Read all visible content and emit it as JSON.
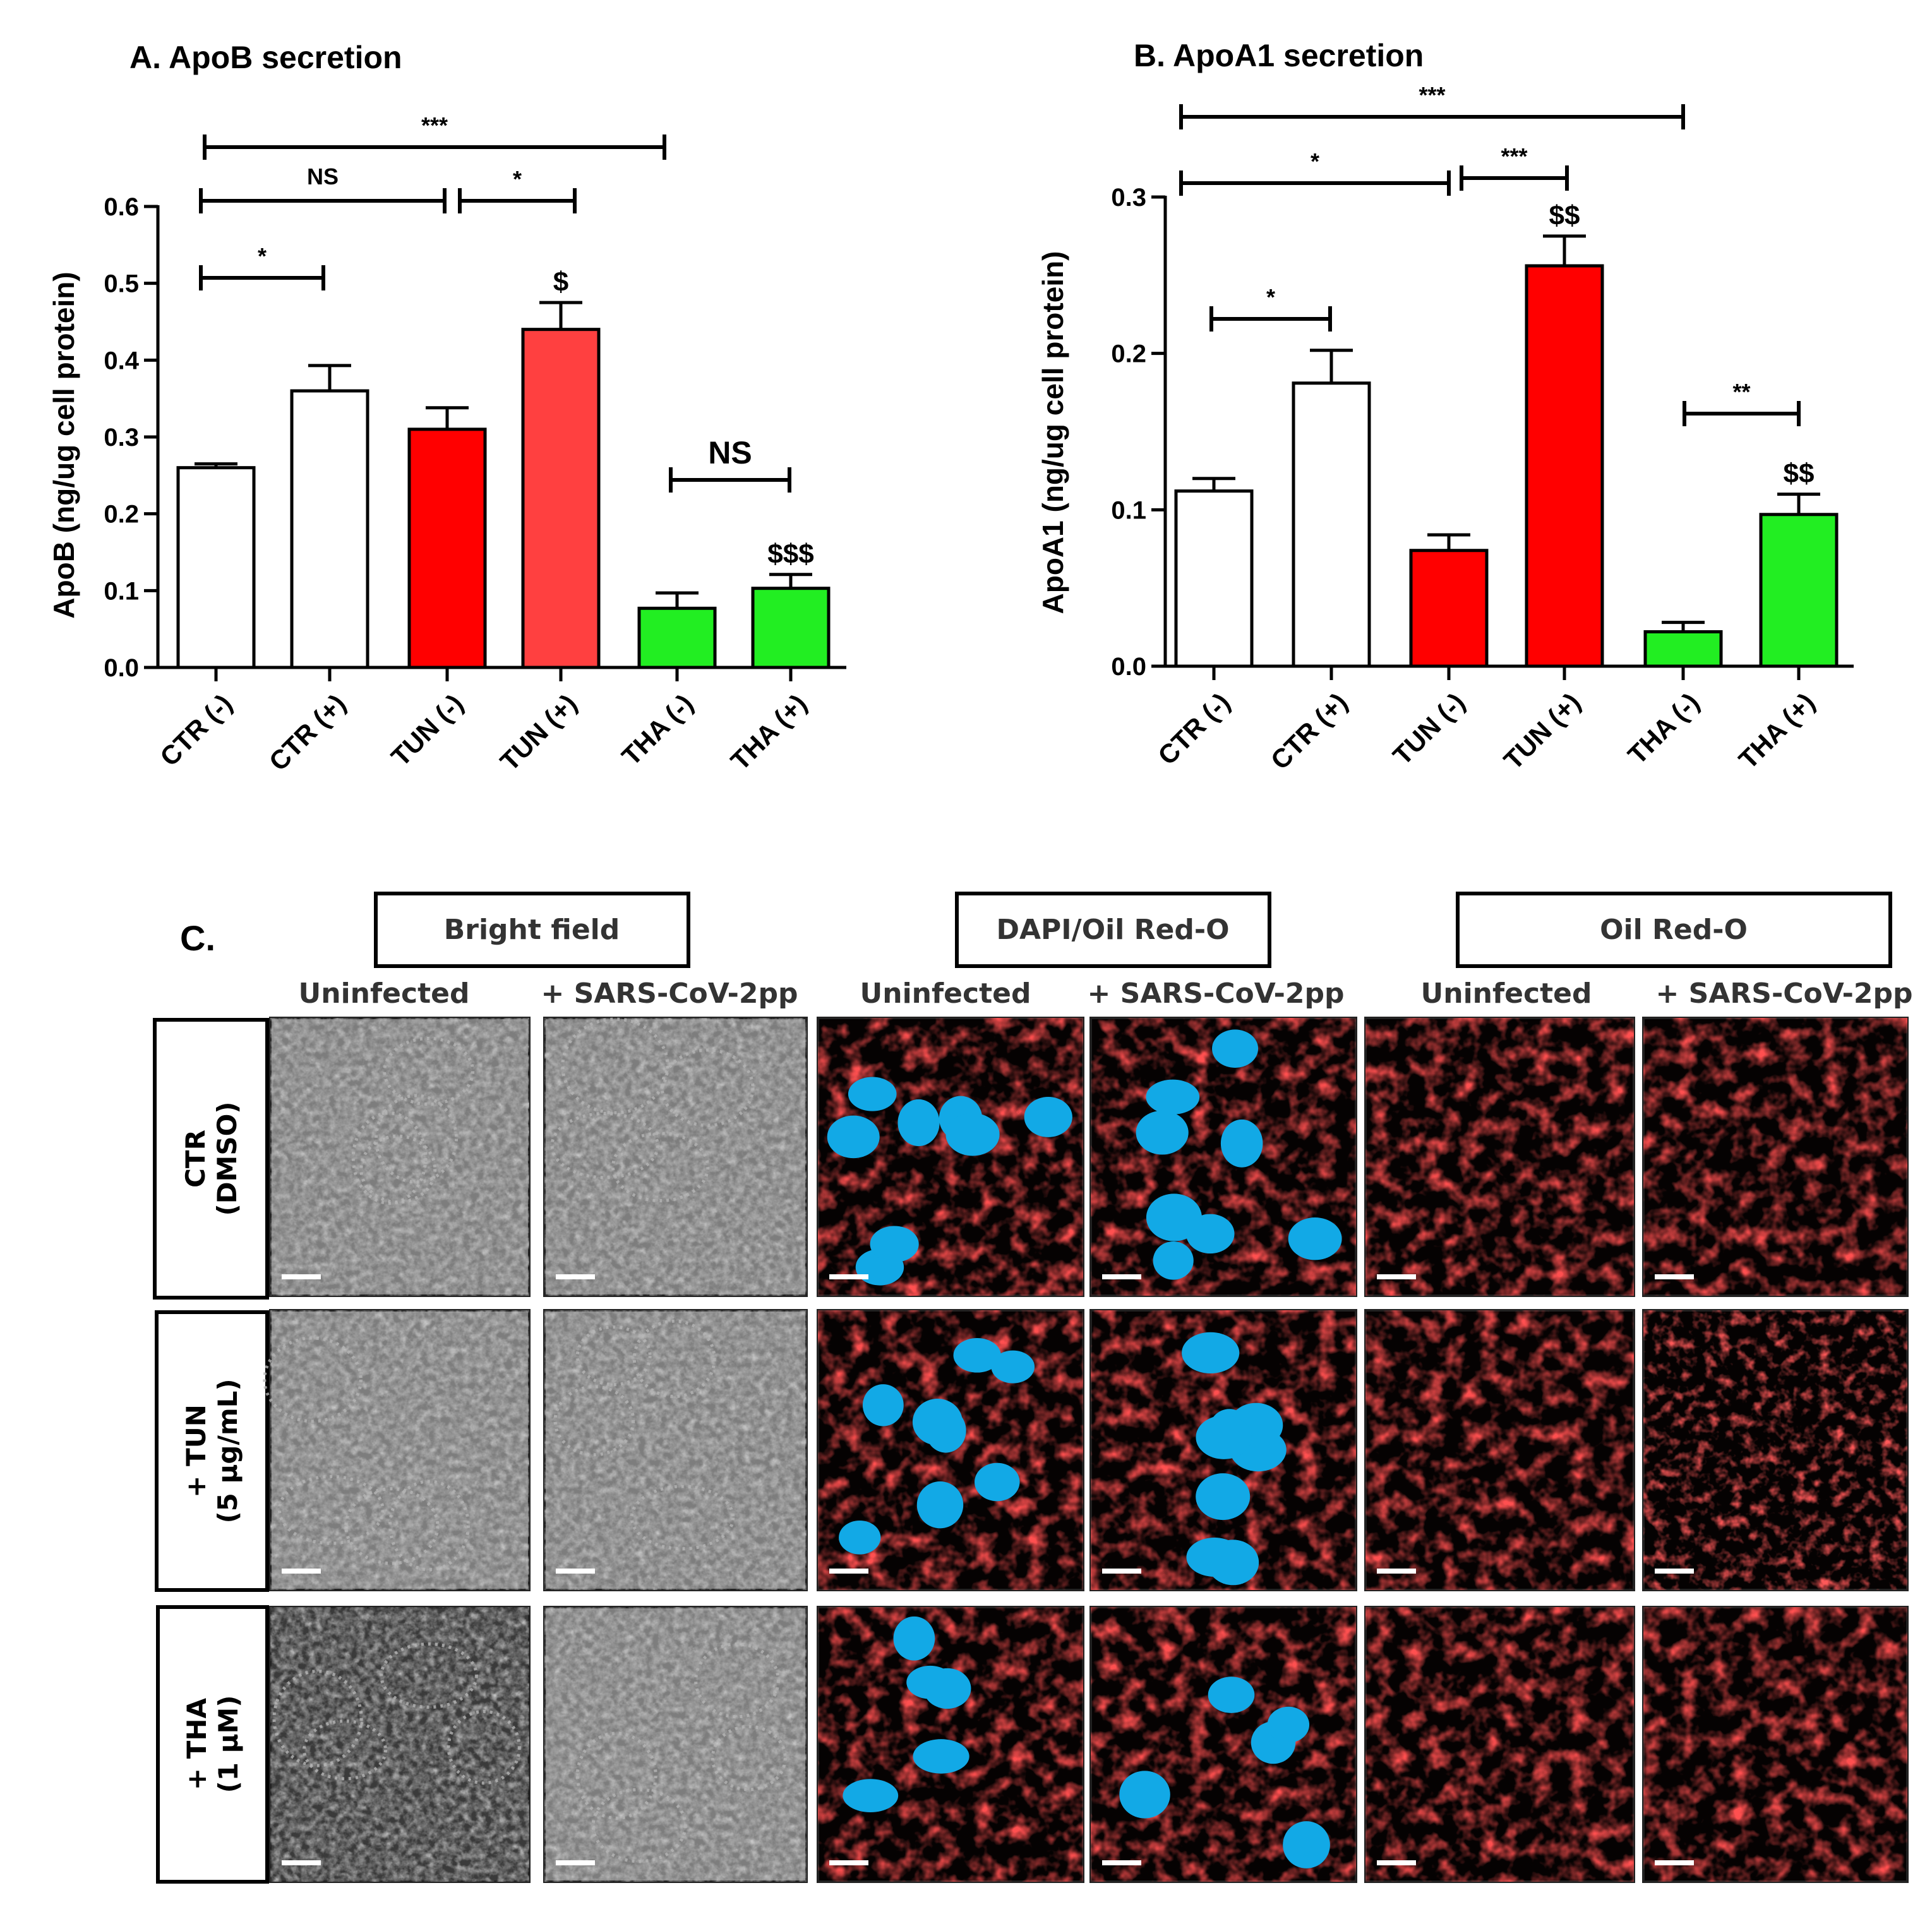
{
  "chart_data": [
    {
      "type": "bar",
      "title": "A. ApoB secretion",
      "ylabel": "ApoB (ng/ug cell protein)",
      "ylim": [
        0,
        0.6
      ],
      "yticks": [
        "0.0",
        "0.1",
        "0.2",
        "0.3",
        "0.4",
        "0.5",
        "0.6"
      ],
      "categories": [
        "CTR (-)",
        "CTR (+)",
        "TUN (-)",
        "TUN (+)",
        "THA (-)",
        "THA (+)"
      ],
      "values": [
        0.26,
        0.36,
        0.31,
        0.44,
        0.077,
        0.103
      ],
      "errors": [
        0.005,
        0.033,
        0.028,
        0.035,
        0.02,
        0.018
      ],
      "colors": [
        "#ffffff",
        "#ffffff",
        "#ff0000",
        "#ff4040",
        "#22ee22",
        "#22ee22"
      ],
      "markers": [
        "",
        "",
        "",
        "$",
        "",
        "$$$"
      ],
      "comparisons": [
        {
          "from": 0,
          "to": 1,
          "label": "*"
        },
        {
          "from": 0,
          "to": 2,
          "label": "NS"
        },
        {
          "from": 2,
          "to": 3,
          "label": "*"
        },
        {
          "from": 0,
          "to": 4,
          "label": "***"
        },
        {
          "from": 4,
          "to": 5,
          "label": "NS"
        }
      ]
    },
    {
      "type": "bar",
      "title": "B. ApoA1 secretion",
      "ylabel": "ApoA1 (ng/ug cell protein)",
      "ylim": [
        0,
        0.3
      ],
      "yticks": [
        "0.0",
        "0.1",
        "0.2",
        "0.3"
      ],
      "categories": [
        "CTR (-)",
        "CTR (+)",
        "TUN (-)",
        "TUN (+)",
        "THA (-)",
        "THA (+)"
      ],
      "values": [
        0.112,
        0.181,
        0.074,
        0.256,
        0.022,
        0.097
      ],
      "errors": [
        0.008,
        0.021,
        0.01,
        0.019,
        0.006,
        0.013
      ],
      "colors": [
        "#ffffff",
        "#ffffff",
        "#ff0000",
        "#ff0000",
        "#22ee22",
        "#22ee22"
      ],
      "markers": [
        "",
        "",
        "",
        "$$",
        "",
        "$$"
      ],
      "comparisons": [
        {
          "from": 0,
          "to": 1,
          "label": "*"
        },
        {
          "from": 0,
          "to": 2,
          "label": "*"
        },
        {
          "from": 2,
          "to": 3,
          "label": "***"
        },
        {
          "from": 0,
          "to": 4,
          "label": "***"
        },
        {
          "from": 4,
          "to": 5,
          "label": "**"
        }
      ]
    }
  ],
  "panel_c": {
    "label": "C.",
    "headers": [
      "Bright field",
      "DAPI/Oil Red-O",
      "Oil Red-O"
    ],
    "subheaders": [
      "Uninfected",
      "+ SARS-CoV-2pp"
    ],
    "rows": [
      {
        "line1": "CTR",
        "line2": "(DMSO)"
      },
      {
        "line1": "+ TUN",
        "line2": "(5 µg/mL)"
      },
      {
        "line1": "+ THA",
        "line2": "(1 µM)"
      }
    ]
  }
}
